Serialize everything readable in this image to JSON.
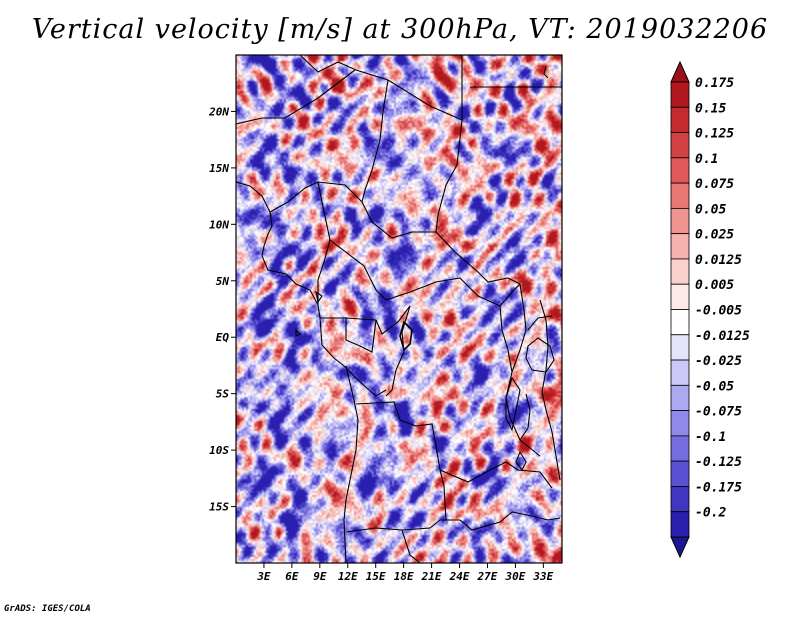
{
  "title": "Vertical velocity [m/s] at 300hPa, VT: 2019032206",
  "credit": "GrADS: IGES/COLA",
  "map": {
    "variable": "Vertical velocity",
    "units": "m/s",
    "level": "300hPa",
    "valid_time": "2019032206",
    "lon_range": [
      0,
      35
    ],
    "lat_range": [
      -20,
      25
    ],
    "lat_ticks": [
      {
        "value": 20,
        "label": "20N"
      },
      {
        "value": 15,
        "label": "15N"
      },
      {
        "value": 10,
        "label": "10N"
      },
      {
        "value": 5,
        "label": "5N"
      },
      {
        "value": 0,
        "label": "EQ"
      },
      {
        "value": -5,
        "label": "5S"
      },
      {
        "value": -10,
        "label": "10S"
      },
      {
        "value": -15,
        "label": "15S"
      }
    ],
    "lon_ticks": [
      {
        "value": 3,
        "label": "3E"
      },
      {
        "value": 6,
        "label": "6E"
      },
      {
        "value": 9,
        "label": "9E"
      },
      {
        "value": 12,
        "label": "12E"
      },
      {
        "value": 15,
        "label": "15E"
      },
      {
        "value": 18,
        "label": "18E"
      },
      {
        "value": 21,
        "label": "21E"
      },
      {
        "value": 24,
        "label": "24E"
      },
      {
        "value": 27,
        "label": "27E"
      },
      {
        "value": 30,
        "label": "30E"
      },
      {
        "value": 33,
        "label": "33E"
      }
    ]
  },
  "colorbar": {
    "levels": [
      {
        "label": "0.175",
        "color": "#b0171e"
      },
      {
        "label": "0.15",
        "color": "#c42a2e"
      },
      {
        "label": "0.125",
        "color": "#d44144"
      },
      {
        "label": "0.1",
        "color": "#e05a5b"
      },
      {
        "label": "0.075",
        "color": "#e87775"
      },
      {
        "label": "0.05",
        "color": "#f09490"
      },
      {
        "label": "0.025",
        "color": "#f6b3ae"
      },
      {
        "label": "0.0125",
        "color": "#fad0cc"
      },
      {
        "label": "0.005",
        "color": "#fdeae8"
      },
      {
        "label": "-0.005",
        "color": "#ffffff"
      },
      {
        "label": "-0.0125",
        "color": "#e6e4fb"
      },
      {
        "label": "-0.025",
        "color": "#cbc7f6"
      },
      {
        "label": "-0.05",
        "color": "#aea8f0"
      },
      {
        "label": "-0.075",
        "color": "#9189ea"
      },
      {
        "label": "-0.1",
        "color": "#766de0"
      },
      {
        "label": "-0.125",
        "color": "#5b51d3"
      },
      {
        "label": "-0.175",
        "color": "#4136c2"
      },
      {
        "label": "-0.2",
        "color": "#2a1fae"
      }
    ],
    "top_color": "#9e1018",
    "bottom_color": "#1d1591"
  }
}
